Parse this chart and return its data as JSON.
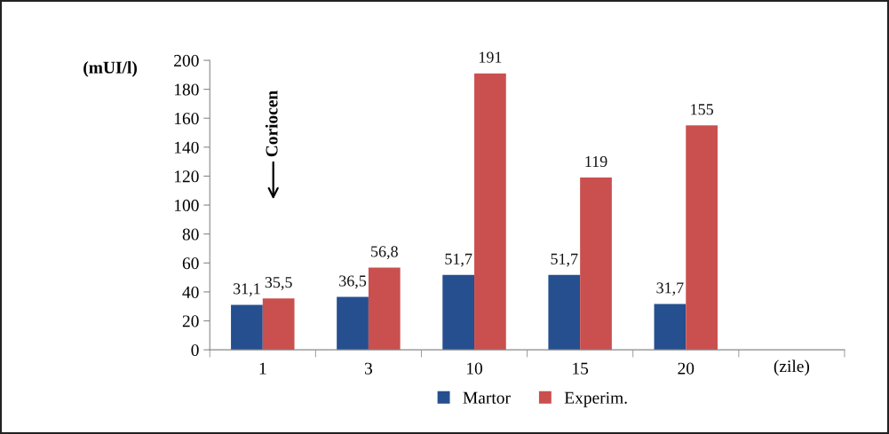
{
  "chart_data": {
    "type": "bar",
    "categories": [
      "1",
      "3",
      "10",
      "15",
      "20"
    ],
    "series": [
      {
        "name": "Martor",
        "color": "#254f8f",
        "values": [
          31.1,
          36.5,
          51.7,
          51.7,
          31.7
        ],
        "value_labels": [
          "31,1",
          "36,5",
          "51,7",
          "51,7",
          "31,7"
        ]
      },
      {
        "name": "Experim.",
        "color": "#c9504f",
        "values": [
          35.5,
          56.8,
          191,
          119,
          155
        ],
        "value_labels": [
          "35,5",
          "56,8",
          "191",
          "119",
          "155"
        ]
      }
    ],
    "ylabel": "(mUI/l)",
    "xlabel": "(zile)",
    "ylim": [
      0,
      200
    ],
    "yticks": [
      0,
      20,
      40,
      60,
      80,
      100,
      120,
      140,
      160,
      180,
      200
    ],
    "annotations": [
      "Coriocen"
    ],
    "grid": false,
    "legend": "bottom"
  }
}
